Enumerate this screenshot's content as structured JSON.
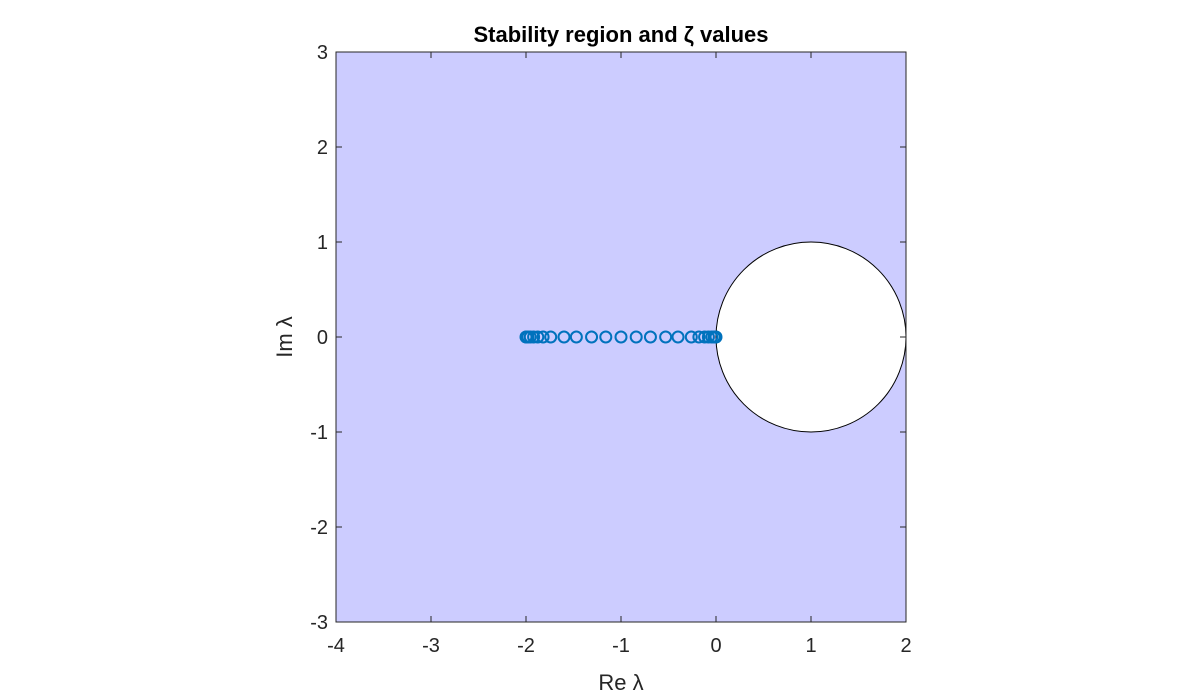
{
  "chart_data": {
    "type": "scatter",
    "title": "Stability region and ζ values",
    "xlabel": "Re λ",
    "ylabel": "Im λ",
    "xlim": [
      -4,
      2
    ],
    "ylim": [
      -3,
      3
    ],
    "xticks": [
      "-4",
      "-3",
      "-2",
      "-1",
      "0",
      "1",
      "2"
    ],
    "yticks": [
      "3",
      "2",
      "1",
      "0",
      "-1",
      "-2",
      "-3"
    ],
    "grid": false,
    "region": {
      "fill_color": "#ccccff",
      "excluded_disk": {
        "center_re": 1,
        "center_im": 0,
        "radius": 1,
        "fill_color": "#ffffff",
        "edge_color": "#000000"
      }
    },
    "series": [
      {
        "marker": "circle",
        "color": "#0072bd",
        "points": [
          {
            "re": -2.0,
            "im": 0
          },
          {
            "re": -1.995,
            "im": 0
          },
          {
            "re": -1.98,
            "im": 0
          },
          {
            "re": -1.955,
            "im": 0
          },
          {
            "re": -1.92,
            "im": 0
          },
          {
            "re": -1.876,
            "im": 0
          },
          {
            "re": -1.82,
            "im": 0
          },
          {
            "re": -1.74,
            "im": 0
          },
          {
            "re": -1.6,
            "im": 0
          },
          {
            "re": -1.47,
            "im": 0
          },
          {
            "re": -1.31,
            "im": 0
          },
          {
            "re": -1.16,
            "im": 0
          },
          {
            "re": -1.0,
            "im": 0
          },
          {
            "re": -0.84,
            "im": 0
          },
          {
            "re": -0.69,
            "im": 0
          },
          {
            "re": -0.53,
            "im": 0
          },
          {
            "re": -0.4,
            "im": 0
          },
          {
            "re": -0.26,
            "im": 0
          },
          {
            "re": -0.18,
            "im": 0
          },
          {
            "re": -0.12,
            "im": 0
          },
          {
            "re": -0.08,
            "im": 0
          },
          {
            "re": -0.045,
            "im": 0
          },
          {
            "re": -0.02,
            "im": 0
          },
          {
            "re": -0.005,
            "im": 0
          },
          {
            "re": 0.0,
            "im": 0
          }
        ]
      }
    ]
  }
}
